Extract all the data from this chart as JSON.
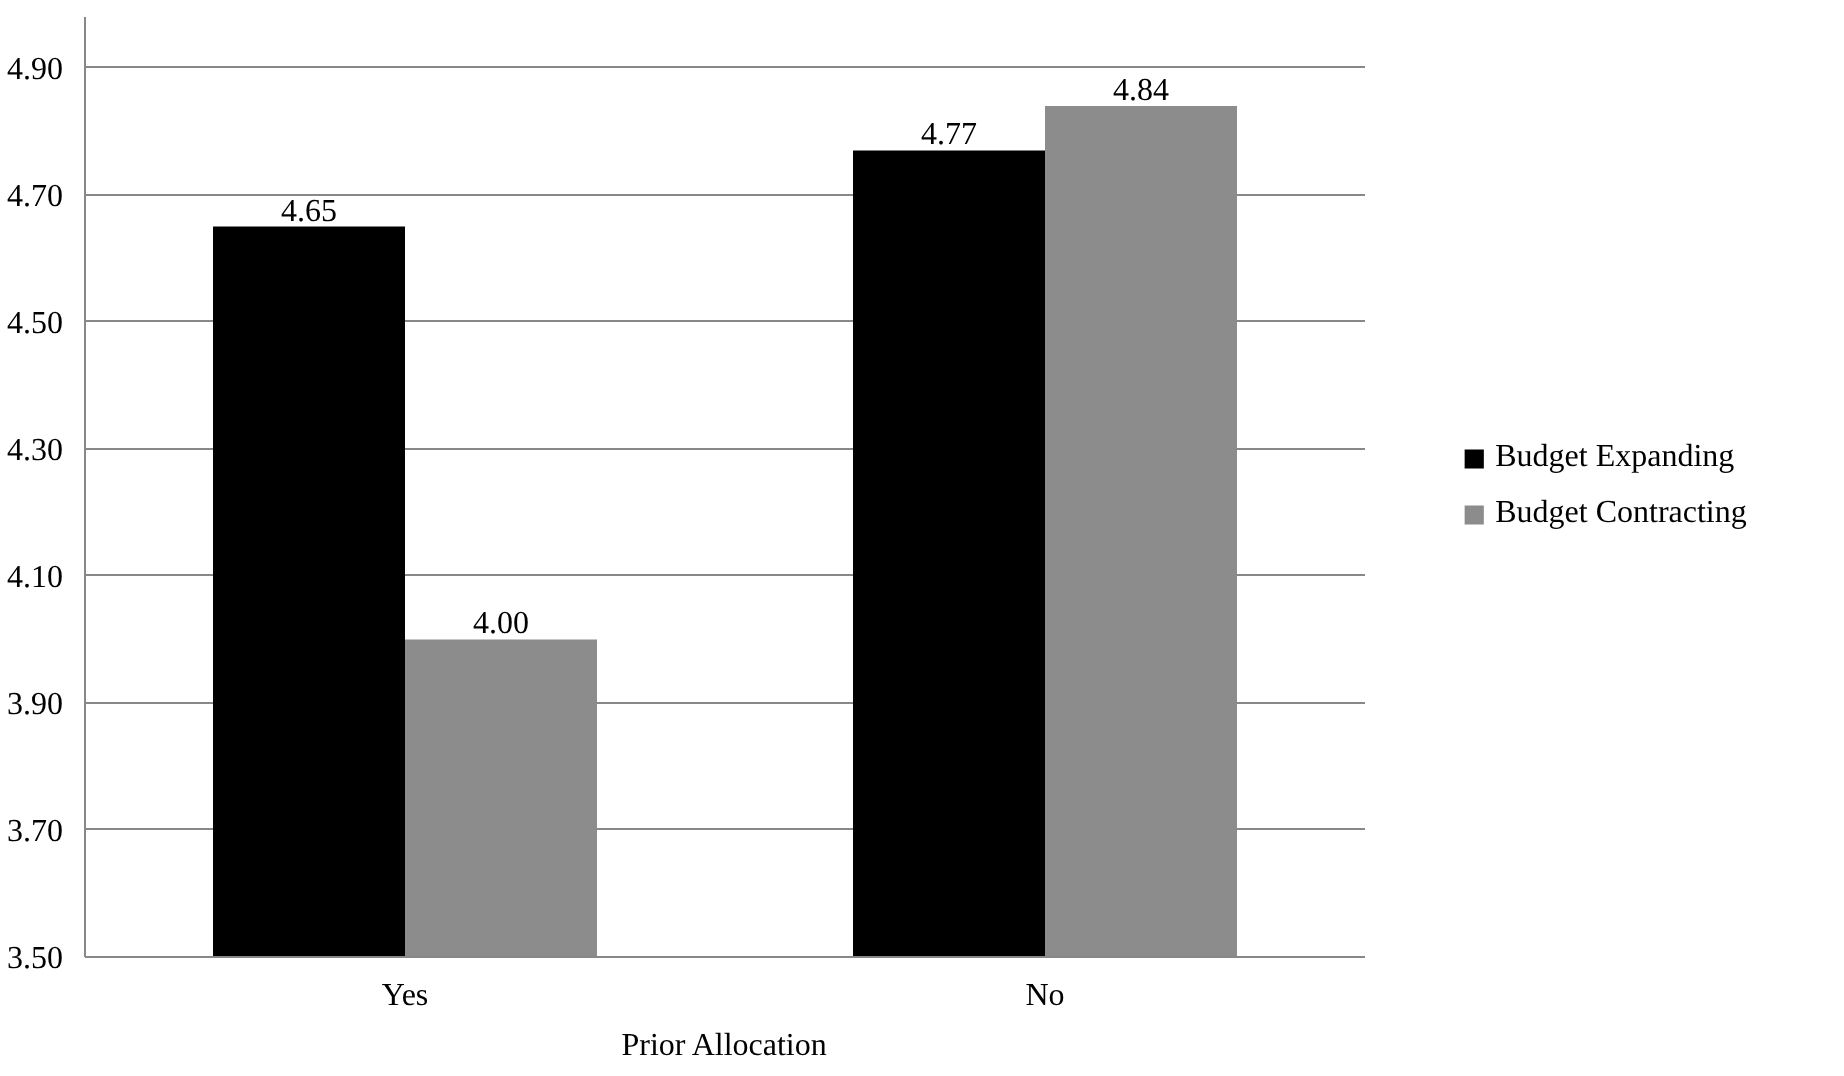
{
  "chart_data": {
    "type": "bar",
    "xlabel": "Prior Allocation",
    "categories": [
      "Yes",
      "No"
    ],
    "series": [
      {
        "name": "Budget Expanding",
        "color": "#000000",
        "values": [
          4.65,
          4.77
        ]
      },
      {
        "name": "Budget Contracting",
        "color": "#8c8c8c",
        "values": [
          4.0,
          4.84
        ]
      }
    ],
    "ylim": [
      3.5,
      4.98
    ],
    "yticks": [
      {
        "value": 3.5,
        "label": "3.50"
      },
      {
        "value": 3.7,
        "label": "3.70"
      },
      {
        "value": 3.9,
        "label": "3.90"
      },
      {
        "value": 4.1,
        "label": "4.10"
      },
      {
        "value": 4.3,
        "label": "4.30"
      },
      {
        "value": 4.5,
        "label": "4.50"
      },
      {
        "value": 4.7,
        "label": "4.70"
      },
      {
        "value": 4.9,
        "label": "4.90"
      }
    ],
    "value_labels": [
      [
        "4.65",
        "4.77"
      ],
      [
        "4.00",
        "4.84"
      ]
    ],
    "grid": "y",
    "legend": "right"
  }
}
